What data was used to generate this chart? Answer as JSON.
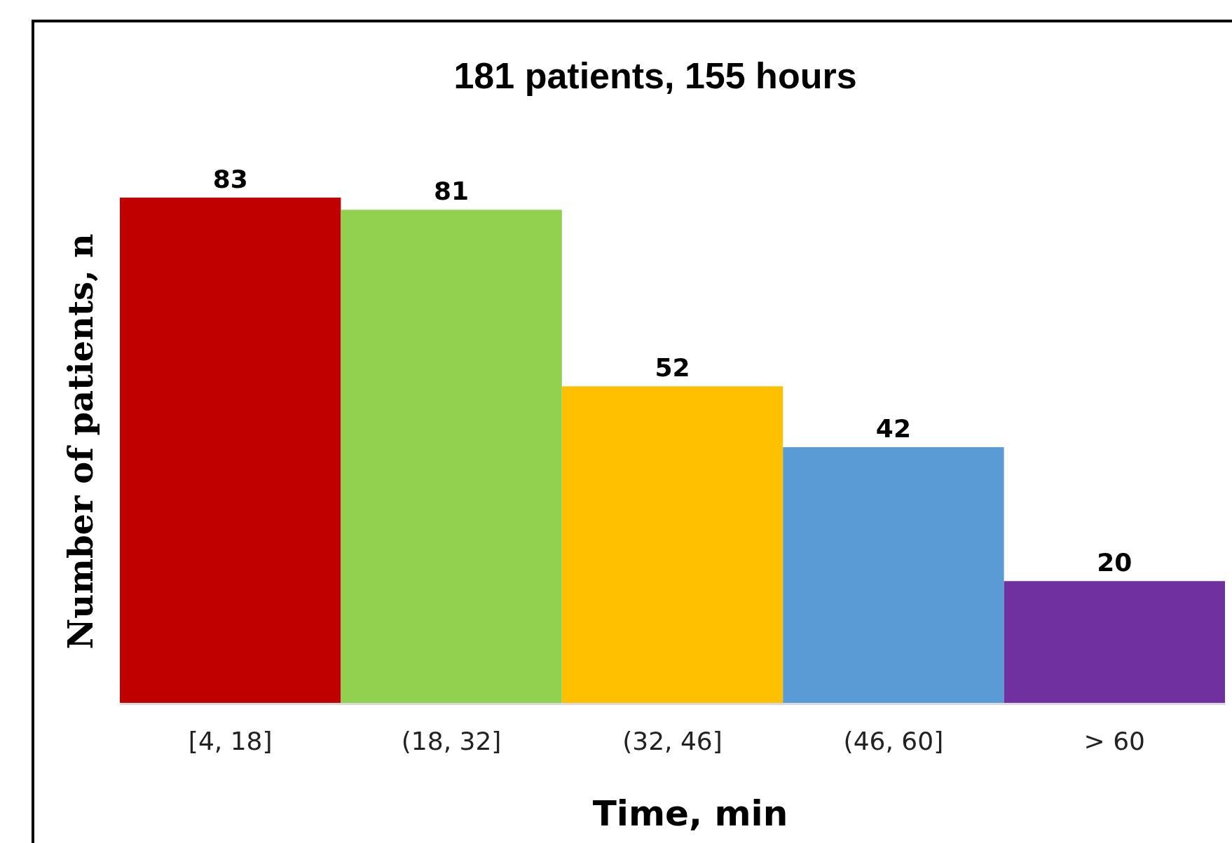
{
  "chart_data": {
    "type": "bar",
    "title": "181 patients, 155 hours",
    "xlabel": "Time, min",
    "ylabel": "Number of patients, n",
    "categories": [
      "[4, 18]",
      "(18, 32]",
      "(32, 46]",
      "(46, 60]",
      "> 60"
    ],
    "values": [
      83,
      81,
      52,
      42,
      20
    ],
    "colors": [
      "#c00000",
      "#92d050",
      "#ffc000",
      "#5b9bd5",
      "#7030a0"
    ],
    "data_labels": true
  }
}
